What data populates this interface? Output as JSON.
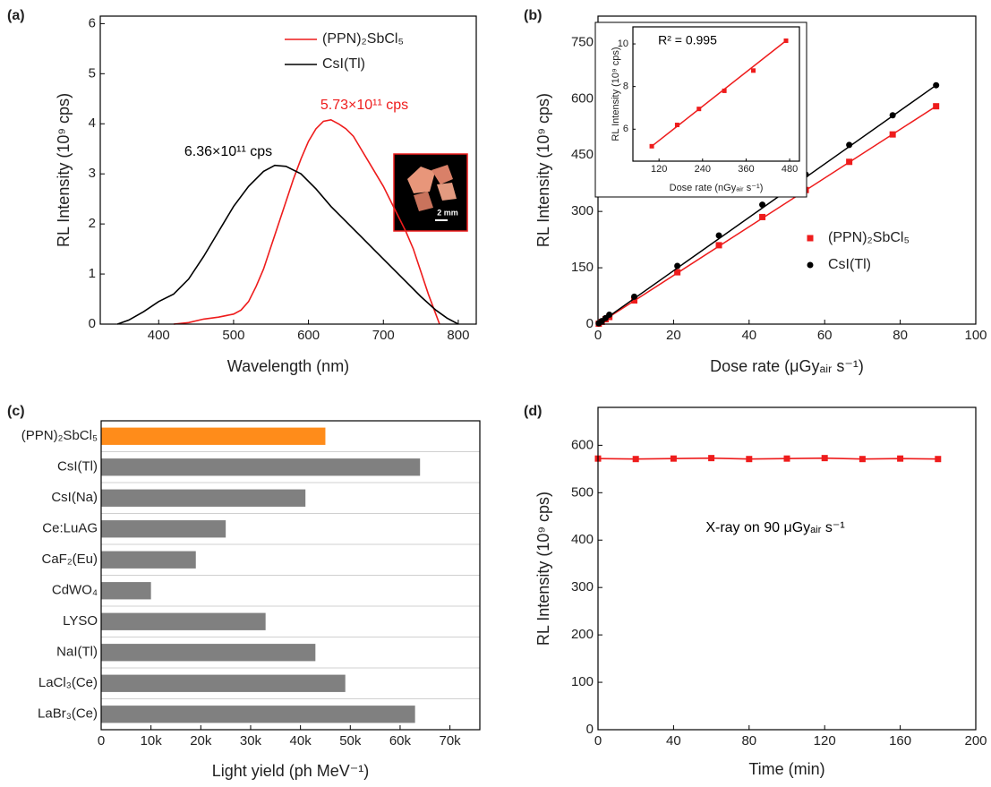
{
  "chart_data": [
    {
      "type": "line",
      "panel": "(a)",
      "xlabel": "Wavelength (nm)",
      "ylabel": "RL Intensity (10⁹ cps)",
      "xlim": [
        322,
        824
      ],
      "ylim": [
        0,
        6.15
      ],
      "xticks": [
        400,
        500,
        600,
        700,
        800
      ],
      "yticks": [
        0,
        1,
        2,
        3,
        4,
        5,
        6
      ],
      "legend": "upper right",
      "image_label": "2 mm",
      "annotations": [
        {
          "text": "5.73×10¹¹ cps",
          "color": "#ee1c1c"
        },
        {
          "text": "6.36×10¹¹ cps",
          "color": "#000000"
        }
      ],
      "series": [
        {
          "name": "(PPN)₂SbCl₅",
          "color": "#ee1c1c",
          "x": [
            420,
            440,
            460,
            480,
            500,
            510,
            520,
            530,
            540,
            550,
            560,
            570,
            580,
            590,
            600,
            610,
            620,
            630,
            640,
            650,
            660,
            670,
            680,
            690,
            700,
            710,
            720,
            730,
            740,
            750,
            760,
            770,
            775
          ],
          "values": [
            0,
            0.03,
            0.1,
            0.14,
            0.2,
            0.28,
            0.45,
            0.75,
            1.1,
            1.55,
            2.0,
            2.45,
            2.9,
            3.3,
            3.65,
            3.9,
            4.05,
            4.08,
            4.0,
            3.9,
            3.75,
            3.5,
            3.25,
            3.0,
            2.75,
            2.45,
            2.15,
            1.85,
            1.5,
            1.05,
            0.6,
            0.2,
            0
          ]
        },
        {
          "name": "CsI(Tl)",
          "color": "#000000",
          "x": [
            345,
            360,
            380,
            400,
            420,
            440,
            460,
            480,
            500,
            520,
            540,
            555,
            570,
            590,
            610,
            630,
            650,
            670,
            690,
            710,
            730,
            750,
            770,
            785,
            800
          ],
          "values": [
            0,
            0.08,
            0.25,
            0.45,
            0.6,
            0.9,
            1.35,
            1.85,
            2.35,
            2.75,
            3.05,
            3.17,
            3.15,
            3.0,
            2.7,
            2.35,
            2.05,
            1.75,
            1.45,
            1.15,
            0.85,
            0.55,
            0.28,
            0.12,
            0
          ]
        }
      ]
    },
    {
      "type": "scatter",
      "panel": "(b)",
      "xlabel": "Dose rate (μGyₐᵢᵣ s⁻¹)",
      "ylabel": "RL Intensity (10⁹ cps)",
      "xlim": [
        0,
        100
      ],
      "ylim": [
        0,
        820
      ],
      "xticks": [
        0,
        20,
        40,
        60,
        80,
        100
      ],
      "yticks": [
        0,
        150,
        300,
        450,
        600,
        750
      ],
      "legend": "center right",
      "series": [
        {
          "name": "(PPN)₂SbCl₅",
          "color": "#ee1c1c",
          "marker": "square",
          "x": [
            0.2,
            1,
            2,
            3,
            9.6,
            21,
            32,
            43.5,
            55,
            66.5,
            78,
            89.5
          ],
          "values": [
            1,
            6,
            13,
            19,
            63,
            138,
            210,
            285,
            357,
            432,
            505,
            580
          ],
          "fit_x": [
            0,
            89.5
          ],
          "fit_values": [
            0,
            580
          ]
        },
        {
          "name": "CsI(Tl)",
          "color": "#000000",
          "marker": "circle",
          "x": [
            0.2,
            1,
            2,
            3,
            9.6,
            21,
            32,
            43.5,
            55,
            66.5,
            78,
            89.5
          ],
          "values": [
            2,
            8,
            16,
            25,
            73,
            155,
            236,
            318,
            398,
            477,
            556,
            636
          ],
          "fit_x": [
            0,
            89.5
          ],
          "fit_values": [
            0,
            636
          ]
        }
      ]
    },
    {
      "type": "scatter",
      "xlabel": "Dose rate (nGyₐᵢᵣ s⁻¹)",
      "ylabel": "RL Intensity (10⁹ cps)",
      "xlim": [
        48,
        507
      ],
      "ylim": [
        4.5,
        10.8
      ],
      "xticks": [
        120,
        240,
        360,
        480
      ],
      "yticks": [
        6,
        8,
        10
      ],
      "annotations": [
        {
          "text": "R² = 0.995",
          "color": "#000000"
        }
      ],
      "series": [
        {
          "color": "#ee1c1c",
          "marker": "square",
          "x": [
            100,
            170,
            230,
            300,
            380,
            470
          ],
          "values": [
            5.2,
            6.2,
            6.95,
            7.8,
            8.75,
            10.15
          ],
          "fit_x": [
            100,
            470
          ],
          "fit_values": [
            5.2,
            10.15
          ]
        }
      ]
    },
    {
      "type": "hbar",
      "panel": "(c)",
      "xlabel": "Light yield (ph MeV⁻¹)",
      "categories": [
        "(PPN)₂SbCl₅",
        "CsI(Tl)",
        "CsI(Na)",
        "Ce:LuAG",
        "CaF₂(Eu)",
        "CdWO₄",
        "LYSO",
        "NaI(Tl)",
        "LaCl₃(Ce)",
        "LaBr₃(Ce)"
      ],
      "values": [
        45000,
        64000,
        41000,
        25000,
        19000,
        10000,
        33000,
        43000,
        49000,
        63000
      ],
      "colors": [
        "#ff8c1a",
        "#808080",
        "#808080",
        "#808080",
        "#808080",
        "#808080",
        "#808080",
        "#808080",
        "#808080",
        "#808080"
      ],
      "xlim": [
        0,
        76000
      ],
      "xticks": [
        0,
        {
          "value": 10000,
          "label": "10k"
        },
        {
          "value": 20000,
          "label": "20k"
        },
        {
          "value": 30000,
          "label": "30k"
        },
        {
          "value": 40000,
          "label": "40k"
        },
        {
          "value": 50000,
          "label": "50k"
        },
        {
          "value": 60000,
          "label": "60k"
        },
        {
          "value": 70000,
          "label": "70k"
        }
      ],
      "grid": true
    },
    {
      "type": "line",
      "panel": "(d)",
      "xlabel": "Time (min)",
      "ylabel": "RL Intensity (10⁹ cps)",
      "xlim": [
        0,
        200
      ],
      "ylim": [
        0,
        680
      ],
      "xticks": [
        0,
        40,
        80,
        120,
        160,
        200
      ],
      "yticks": [
        0,
        100,
        200,
        300,
        400,
        500,
        600
      ],
      "annotations": [
        {
          "text": "X-ray on 90 μGyₐᵢᵣ s⁻¹",
          "color": "#000000"
        }
      ],
      "series": [
        {
          "color": "#ee1c1c",
          "marker": "square",
          "x": [
            0,
            20,
            40,
            60,
            80,
            100,
            120,
            140,
            160,
            180
          ],
          "values": [
            572,
            571,
            572,
            573,
            571,
            572,
            573,
            571,
            572,
            571
          ]
        }
      ]
    }
  ]
}
